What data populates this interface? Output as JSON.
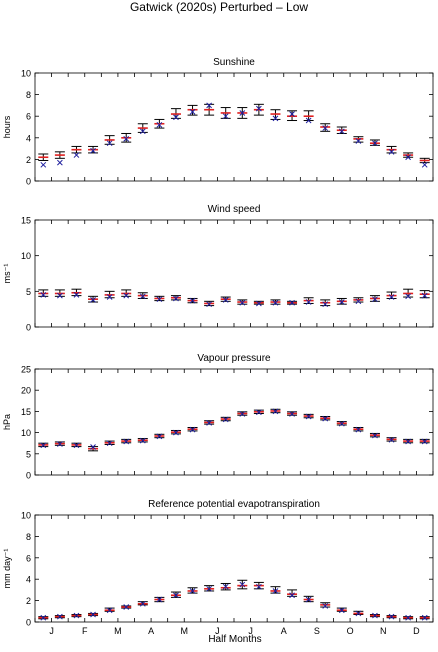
{
  "figure": {
    "title": "Gatwick (2020s) Perturbed – Low",
    "xlabel": "Half Months",
    "months": [
      "J",
      "F",
      "M",
      "A",
      "M",
      "J",
      "J",
      "A",
      "S",
      "O",
      "N",
      "D"
    ]
  },
  "colors": {
    "observed": "#1f1f9e",
    "model": "#e0201f",
    "errorbar": "#000000"
  },
  "chart_data": [
    {
      "type": "scatter",
      "title": "Sunshine",
      "ylabel": "hours",
      "ylim": [
        0,
        10
      ],
      "yticks": [
        0,
        2,
        4,
        6,
        8,
        10
      ],
      "x": [
        1,
        2,
        3,
        4,
        5,
        6,
        7,
        8,
        9,
        10,
        11,
        12,
        13,
        14,
        15,
        16,
        17,
        18,
        19,
        20,
        21,
        22,
        23,
        24
      ],
      "series": [
        {
          "name": "mean",
          "values": [
            2.2,
            2.4,
            2.9,
            2.9,
            3.8,
            4.0,
            4.9,
            5.3,
            6.2,
            6.6,
            6.6,
            6.3,
            6.3,
            6.6,
            6.2,
            6.0,
            6.0,
            5.0,
            4.7,
            3.9,
            3.5,
            2.9,
            2.4,
            1.9
          ]
        },
        {
          "name": "upper",
          "values": [
            2.5,
            2.7,
            3.2,
            3.2,
            4.2,
            4.4,
            5.3,
            5.7,
            6.7,
            7.0,
            7.1,
            6.8,
            6.8,
            7.1,
            6.6,
            6.5,
            6.5,
            5.3,
            5.0,
            4.1,
            3.8,
            3.2,
            2.6,
            2.1
          ]
        },
        {
          "name": "lower",
          "values": [
            1.9,
            2.1,
            2.6,
            2.6,
            3.4,
            3.6,
            4.5,
            4.9,
            5.8,
            6.1,
            6.1,
            5.8,
            5.8,
            6.1,
            5.7,
            5.6,
            5.6,
            4.6,
            4.4,
            3.6,
            3.3,
            2.6,
            2.2,
            1.7
          ]
        },
        {
          "name": "observed",
          "values": [
            1.5,
            1.7,
            2.4,
            2.8,
            3.5,
            3.9,
            4.6,
            5.2,
            5.9,
            6.4,
            7.0,
            6.0,
            6.3,
            6.7,
            5.8,
            6.2,
            5.6,
            4.9,
            4.6,
            3.7,
            3.5,
            2.7,
            2.2,
            1.5
          ]
        }
      ]
    },
    {
      "type": "scatter",
      "title": "Wind speed",
      "ylabel": "ms⁻¹",
      "ylim": [
        0,
        15
      ],
      "yticks": [
        0,
        5,
        10,
        15
      ],
      "x": [
        1,
        2,
        3,
        4,
        5,
        6,
        7,
        8,
        9,
        10,
        11,
        12,
        13,
        14,
        15,
        16,
        17,
        18,
        19,
        20,
        21,
        22,
        23,
        24
      ],
      "series": [
        {
          "name": "mean",
          "values": [
            4.7,
            4.7,
            4.8,
            3.9,
            4.5,
            4.7,
            4.4,
            4.0,
            4.1,
            3.7,
            3.3,
            3.9,
            3.5,
            3.4,
            3.5,
            3.4,
            3.7,
            3.4,
            3.6,
            3.8,
            4.0,
            4.4,
            4.7,
            4.6
          ]
        },
        {
          "name": "upper",
          "values": [
            5.2,
            5.2,
            5.3,
            4.3,
            5.0,
            5.2,
            4.8,
            4.3,
            4.4,
            4.0,
            3.6,
            4.2,
            3.8,
            3.6,
            3.8,
            3.6,
            4.1,
            3.8,
            4.0,
            4.1,
            4.4,
            4.9,
            5.3,
            5.1
          ]
        },
        {
          "name": "lower",
          "values": [
            4.3,
            4.3,
            4.4,
            3.5,
            4.1,
            4.3,
            4.0,
            3.7,
            3.8,
            3.4,
            3.0,
            3.6,
            3.2,
            3.2,
            3.2,
            3.2,
            3.3,
            3.0,
            3.2,
            3.5,
            3.6,
            4.0,
            4.2,
            4.1
          ]
        },
        {
          "name": "observed",
          "values": [
            4.5,
            4.4,
            4.5,
            3.8,
            4.2,
            4.4,
            4.3,
            3.9,
            4.0,
            3.7,
            3.2,
            3.8,
            3.4,
            3.3,
            3.4,
            3.4,
            3.5,
            3.2,
            3.5,
            3.6,
            3.9,
            4.2,
            4.3,
            4.4
          ]
        }
      ]
    },
    {
      "type": "scatter",
      "title": "Vapour pressure",
      "ylabel": "hPa",
      "ylim": [
        0,
        25
      ],
      "yticks": [
        0,
        5,
        10,
        15,
        20,
        25
      ],
      "x": [
        1,
        2,
        3,
        4,
        5,
        6,
        7,
        8,
        9,
        10,
        11,
        12,
        13,
        14,
        15,
        16,
        17,
        18,
        19,
        20,
        21,
        22,
        23,
        24
      ],
      "series": [
        {
          "name": "mean",
          "values": [
            7.1,
            7.4,
            7.1,
            6.2,
            7.6,
            8.0,
            8.2,
            9.2,
            10.1,
            10.8,
            12.4,
            13.2,
            14.5,
            14.9,
            15.1,
            14.5,
            13.9,
            13.4,
            12.2,
            10.8,
            9.4,
            8.4,
            8.0,
            8.0
          ]
        },
        {
          "name": "upper",
          "values": [
            7.5,
            7.8,
            7.5,
            6.7,
            8.0,
            8.4,
            8.6,
            9.6,
            10.5,
            11.2,
            12.8,
            13.6,
            14.9,
            15.3,
            15.5,
            14.9,
            14.3,
            13.8,
            12.6,
            11.2,
            9.8,
            8.8,
            8.4,
            8.4
          ]
        },
        {
          "name": "lower",
          "values": [
            6.7,
            7.0,
            6.7,
            5.7,
            7.2,
            7.6,
            7.8,
            8.8,
            9.7,
            10.4,
            12.0,
            12.8,
            14.1,
            14.5,
            14.7,
            14.1,
            13.5,
            13.0,
            11.8,
            10.4,
            9.0,
            8.0,
            7.6,
            7.6
          ]
        },
        {
          "name": "observed",
          "values": [
            7.0,
            7.3,
            7.0,
            6.6,
            7.5,
            7.9,
            8.1,
            9.1,
            10.0,
            10.7,
            12.3,
            13.1,
            14.4,
            14.8,
            15.0,
            14.4,
            13.8,
            13.3,
            12.1,
            10.7,
            9.3,
            8.3,
            7.9,
            7.9
          ]
        }
      ]
    },
    {
      "type": "scatter",
      "title": "Reference potential evapotranspiration",
      "ylabel": "mm day⁻¹",
      "ylim": [
        0,
        10
      ],
      "yticks": [
        0,
        2,
        4,
        6,
        8,
        10
      ],
      "x": [
        1,
        2,
        3,
        4,
        5,
        6,
        7,
        8,
        9,
        10,
        11,
        12,
        13,
        14,
        15,
        16,
        17,
        18,
        19,
        20,
        21,
        22,
        23,
        24
      ],
      "series": [
        {
          "name": "mean",
          "values": [
            0.4,
            0.5,
            0.6,
            0.7,
            1.1,
            1.4,
            1.7,
            2.1,
            2.5,
            2.9,
            3.1,
            3.2,
            3.4,
            3.4,
            2.9,
            2.6,
            2.1,
            1.6,
            1.1,
            0.8,
            0.6,
            0.5,
            0.4,
            0.4
          ]
        },
        {
          "name": "upper",
          "values": [
            0.5,
            0.6,
            0.7,
            0.8,
            1.3,
            1.5,
            1.9,
            2.3,
            2.8,
            3.2,
            3.4,
            3.6,
            3.9,
            3.7,
            3.3,
            3.0,
            2.4,
            1.8,
            1.3,
            1.0,
            0.7,
            0.6,
            0.5,
            0.5
          ]
        },
        {
          "name": "lower",
          "values": [
            0.3,
            0.4,
            0.5,
            0.6,
            1.0,
            1.3,
            1.6,
            1.9,
            2.3,
            2.7,
            2.9,
            3.0,
            3.1,
            3.1,
            2.7,
            2.4,
            1.9,
            1.4,
            1.0,
            0.7,
            0.5,
            0.4,
            0.3,
            0.3
          ]
        },
        {
          "name": "observed",
          "values": [
            0.4,
            0.5,
            0.6,
            0.7,
            1.1,
            1.4,
            1.7,
            2.1,
            2.5,
            2.9,
            3.1,
            3.3,
            3.5,
            3.3,
            2.9,
            2.5,
            2.1,
            1.5,
            1.1,
            0.8,
            0.6,
            0.5,
            0.4,
            0.4
          ]
        }
      ]
    }
  ]
}
